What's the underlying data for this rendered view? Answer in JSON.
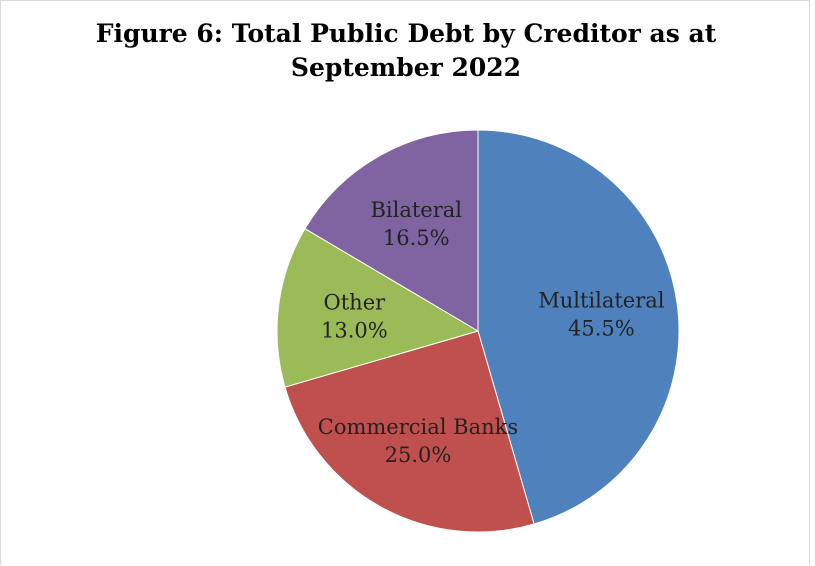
{
  "chart_data": {
    "type": "pie",
    "title_lines": [
      "Figure 6: Total Public Debt by Creditor as at",
      "September 2022"
    ],
    "slices": [
      {
        "label": "Multilateral",
        "value": 45.5,
        "display": "45.5%",
        "color": "#4f81bd"
      },
      {
        "label": "Commercial Banks",
        "value": 25.0,
        "display": "25.0%",
        "color": "#c0504d"
      },
      {
        "label": "Other",
        "value": 13.0,
        "display": "13.0%",
        "color": "#9bbb59"
      },
      {
        "label": "Bilateral",
        "value": 16.5,
        "display": "16.5%",
        "color": "#8064a2"
      }
    ],
    "start_angle": "12 o'clock",
    "direction": "clockwise"
  }
}
